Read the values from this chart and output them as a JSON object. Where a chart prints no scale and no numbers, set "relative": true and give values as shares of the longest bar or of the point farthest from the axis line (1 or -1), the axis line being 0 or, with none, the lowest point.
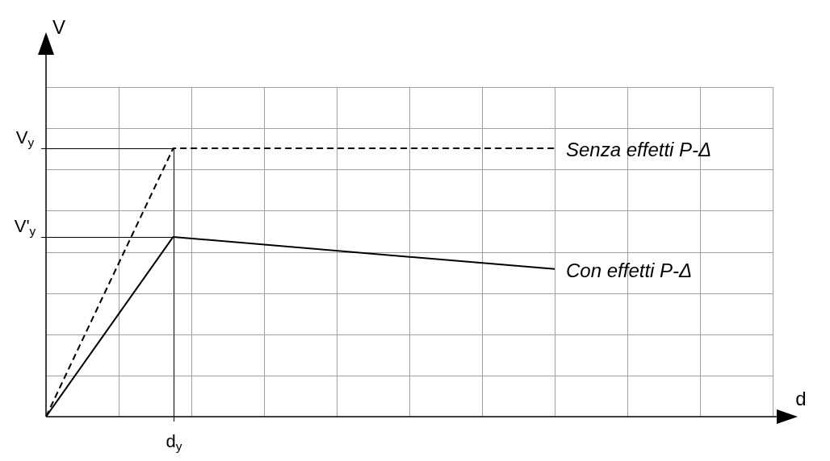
{
  "chart_data": {
    "type": "line",
    "relative": true,
    "grid": true,
    "legend": false,
    "marker": "none",
    "categories": [
      null,
      null,
      null,
      null,
      null
    ],
    "series": [
      {
        "name": "Senza effetti P-Δ",
        "color": "#000000",
        "line_style": "dashed",
        "values": [
          0,
          1,
          null,
          null,
          1
        ]
      },
      {
        "name": "Con effetti P-Δ",
        "color": "#000000",
        "line_style": "solid",
        "values": [
          0,
          0.67,
          null,
          null,
          0.55
        ]
      }
    ],
    "annotations": [
      "V$_{y}$",
      "V'$_{y}$",
      "d$_{y}$",
      "V",
      "d"
    ]
  }
}
